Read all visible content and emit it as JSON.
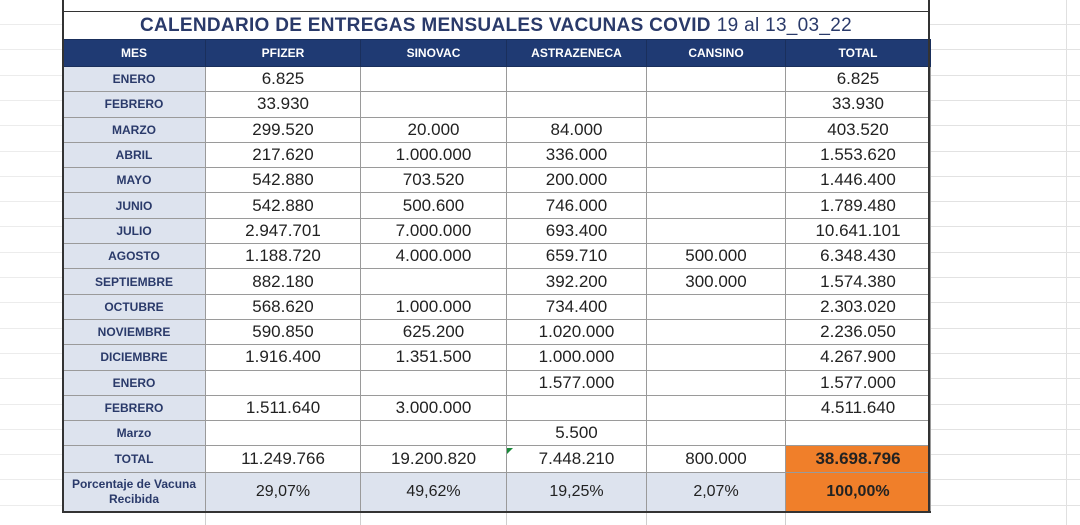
{
  "title": {
    "main": "CALENDARIO DE ENTREGAS MENSUALES VACUNAS COVID",
    "date": "19 al 13_03_22"
  },
  "columns": [
    "MES",
    "PFIZER",
    "SINOVAC",
    "ASTRAZENECA",
    "CANSINO",
    "TOTAL"
  ],
  "rows": [
    {
      "mes": "ENERO",
      "pfizer": "6.825",
      "sinovac": "",
      "astrazeneca": "",
      "cansino": "",
      "total": "6.825"
    },
    {
      "mes": "FEBRERO",
      "pfizer": "33.930",
      "sinovac": "",
      "astrazeneca": "",
      "cansino": "",
      "total": "33.930"
    },
    {
      "mes": "MARZO",
      "pfizer": "299.520",
      "sinovac": "20.000",
      "astrazeneca": "84.000",
      "cansino": "",
      "total": "403.520"
    },
    {
      "mes": "ABRIL",
      "pfizer": "217.620",
      "sinovac": "1.000.000",
      "astrazeneca": "336.000",
      "cansino": "",
      "total": "1.553.620"
    },
    {
      "mes": "MAYO",
      "pfizer": "542.880",
      "sinovac": "703.520",
      "astrazeneca": "200.000",
      "cansino": "",
      "total": "1.446.400"
    },
    {
      "mes": "JUNIO",
      "pfizer": "542.880",
      "sinovac": "500.600",
      "astrazeneca": "746.000",
      "cansino": "",
      "total": "1.789.480"
    },
    {
      "mes": "JULIO",
      "pfizer": "2.947.701",
      "sinovac": "7.000.000",
      "astrazeneca": "693.400",
      "cansino": "",
      "total": "10.641.101"
    },
    {
      "mes": "AGOSTO",
      "pfizer": "1.188.720",
      "sinovac": "4.000.000",
      "astrazeneca": "659.710",
      "cansino": "500.000",
      "total": "6.348.430"
    },
    {
      "mes": "SEPTIEMBRE",
      "pfizer": "882.180",
      "sinovac": "",
      "astrazeneca": "392.200",
      "cansino": "300.000",
      "total": "1.574.380"
    },
    {
      "mes": "OCTUBRE",
      "pfizer": "568.620",
      "sinovac": "1.000.000",
      "astrazeneca": "734.400",
      "cansino": "",
      "total": "2.303.020"
    },
    {
      "mes": "NOVIEMBRE",
      "pfizer": "590.850",
      "sinovac": "625.200",
      "astrazeneca": "1.020.000",
      "cansino": "",
      "total": "2.236.050"
    },
    {
      "mes": "DICIEMBRE",
      "pfizer": "1.916.400",
      "sinovac": "1.351.500",
      "astrazeneca": "1.000.000",
      "cansino": "",
      "total": "4.267.900"
    },
    {
      "mes": "ENERO",
      "pfizer": "",
      "sinovac": "",
      "astrazeneca": "1.577.000",
      "cansino": "",
      "total": "1.577.000"
    },
    {
      "mes": "FEBRERO",
      "pfizer": "1.511.640",
      "sinovac": "3.000.000",
      "astrazeneca": "",
      "cansino": "",
      "total": "4.511.640"
    },
    {
      "mes": "Marzo",
      "pfizer": "",
      "sinovac": "",
      "astrazeneca": "5.500",
      "cansino": "",
      "total": ""
    }
  ],
  "total_row": {
    "mes": "TOTAL",
    "pfizer": "11.249.766",
    "sinovac": "19.200.820",
    "astrazeneca": "7.448.210",
    "cansino": "800.000",
    "total": "38.698.796"
  },
  "percent_row": {
    "mes": "Porcentaje de Vacuna Recibida",
    "pfizer": "29,07%",
    "sinovac": "49,62%",
    "astrazeneca": "19,25%",
    "cansino": "2,07%",
    "total": "100,00%"
  },
  "colors": {
    "header_bg": "#1f3a73",
    "month_bg": "#dde3ee",
    "grand_total_bg": "#f07f2a",
    "title_text": "#2a3a6a"
  }
}
